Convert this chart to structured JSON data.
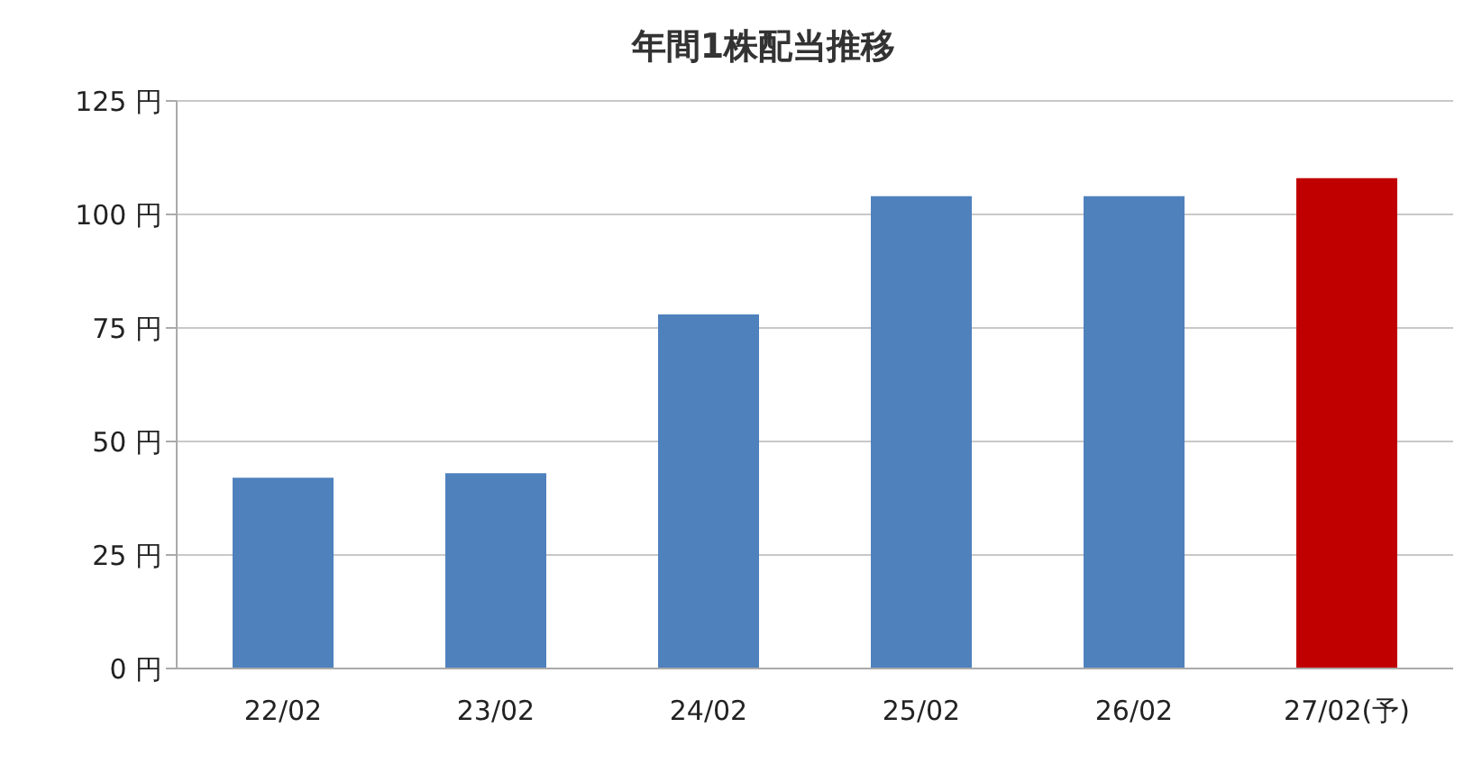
{
  "chart_data": {
    "type": "bar",
    "title": "年間1株配当推移",
    "categories": [
      "22/02",
      "23/02",
      "24/02",
      "25/02",
      "26/02",
      "27/02(予)"
    ],
    "values": [
      42,
      43,
      78,
      104,
      104,
      108
    ],
    "colors": [
      "#4f81bd",
      "#4f81bd",
      "#4f81bd",
      "#4f81bd",
      "#4f81bd",
      "#c00000"
    ],
    "ylim": [
      0,
      125
    ],
    "yticks": [
      {
        "value": 0,
        "label": "0 円"
      },
      {
        "value": 25,
        "label": "25 円"
      },
      {
        "value": 50,
        "label": "50 円"
      },
      {
        "value": 75,
        "label": "75 円"
      },
      {
        "value": 100,
        "label": "100 円"
      },
      {
        "value": 125,
        "label": "125 円"
      }
    ],
    "grid": "y"
  }
}
